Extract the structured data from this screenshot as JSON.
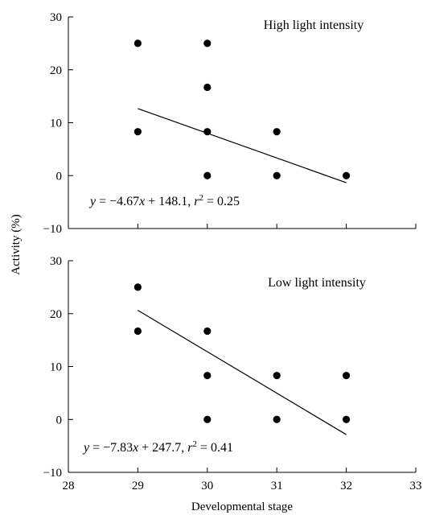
{
  "chart_data": {
    "type": "scatter",
    "xlabel": "Developmental stage",
    "ylabel": "Activity (%)",
    "xlim": [
      28,
      33
    ],
    "xticks": [
      28,
      29,
      30,
      31,
      32,
      33
    ],
    "ylim": [
      -10,
      30
    ],
    "yticks": [
      -10,
      0,
      10,
      20,
      30
    ],
    "panels": [
      {
        "title": "High light intensity",
        "points": [
          {
            "x": 29,
            "y": 25
          },
          {
            "x": 29,
            "y": 8.3
          },
          {
            "x": 30,
            "y": 25
          },
          {
            "x": 30,
            "y": 16.7
          },
          {
            "x": 30,
            "y": 8.3
          },
          {
            "x": 30,
            "y": 0
          },
          {
            "x": 31,
            "y": 8.3
          },
          {
            "x": 31,
            "y": 0
          },
          {
            "x": 32,
            "y": 0
          }
        ],
        "fit": {
          "slope": -4.67,
          "intercept": 148.1,
          "r2": 0.25,
          "x_range": [
            29,
            32
          ]
        },
        "equation": {
          "y": "y",
          "rhs": " = −4.67",
          "x": "x",
          "tail": " + 148.1, ",
          "r": "r",
          "sup": "2",
          "r2": " = 0.25"
        }
      },
      {
        "title": "Low light intensity",
        "points": [
          {
            "x": 29,
            "y": 25
          },
          {
            "x": 29,
            "y": 16.7
          },
          {
            "x": 30,
            "y": 16.7
          },
          {
            "x": 30,
            "y": 8.3
          },
          {
            "x": 30,
            "y": 0
          },
          {
            "x": 31,
            "y": 8.3
          },
          {
            "x": 31,
            "y": 0
          },
          {
            "x": 32,
            "y": 8.3
          },
          {
            "x": 32,
            "y": 0
          }
        ],
        "fit": {
          "slope": -7.83,
          "intercept": 247.7,
          "r2": 0.41,
          "x_range": [
            29,
            32
          ]
        },
        "equation": {
          "y": "y",
          "rhs": " = −7.83",
          "x": "x",
          "tail": " + 247.7, ",
          "r": "r",
          "sup": "2",
          "r2": " = 0.41"
        }
      }
    ]
  }
}
